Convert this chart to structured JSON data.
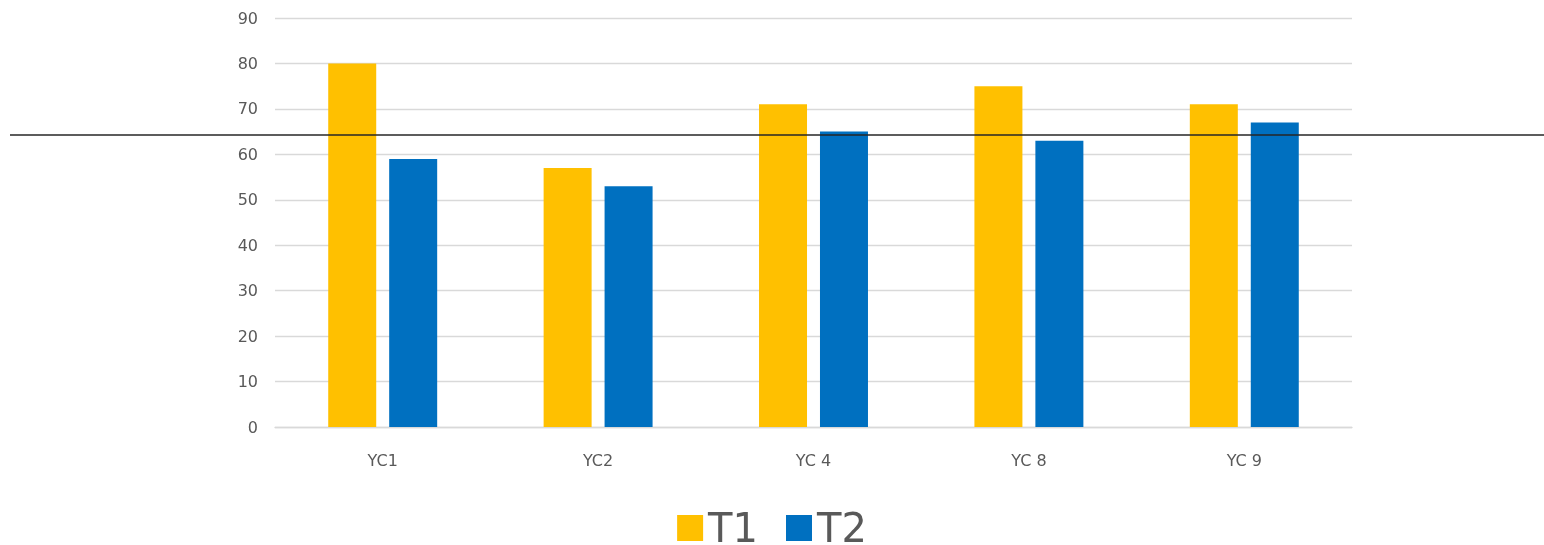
{
  "chart_data": {
    "type": "bar",
    "categories": [
      "YC1",
      "YC2",
      "YC 4",
      "YC 8",
      "YC 9"
    ],
    "series": [
      {
        "name": "T1",
        "color": "#ffc000",
        "values": [
          80,
          57,
          71,
          75,
          71
        ]
      },
      {
        "name": "T2",
        "color": "#0070c0",
        "values": [
          59,
          53,
          65,
          63,
          67
        ]
      }
    ],
    "ylim": [
      0,
      90
    ],
    "yticks": [
      0,
      10,
      20,
      30,
      40,
      50,
      60,
      70,
      80,
      90
    ],
    "ref_lines": [
      {
        "axis": "y",
        "value": 64.4,
        "color": "#262626",
        "line_style": "solid"
      }
    ],
    "grid": "y",
    "legend": "bottom"
  }
}
